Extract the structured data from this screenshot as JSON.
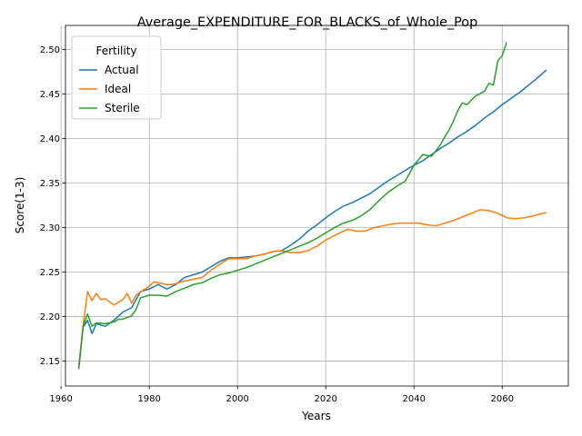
{
  "chart_data": {
    "type": "line",
    "title": "Average_EXPENDITURE_FOR_BLACKS_of_Whole_Pop",
    "xlabel": "Years",
    "ylabel": "Score(1-3)",
    "xlim": [
      1961,
      2075
    ],
    "ylim": [
      2.122,
      2.527
    ],
    "xticks": [
      1960,
      1980,
      2000,
      2020,
      2040,
      2060
    ],
    "yticks": [
      2.15,
      2.2,
      2.25,
      2.3,
      2.35,
      2.4,
      2.45,
      2.5
    ],
    "ytick_labels": [
      "2.15",
      "2.20",
      "2.25",
      "2.30",
      "2.35",
      "2.40",
      "2.45",
      "2.50"
    ],
    "grid": true,
    "legend": {
      "title": "Fertility",
      "placement": "upper-left"
    },
    "series": [
      {
        "name": "Actual",
        "color": "#1f77b4",
        "x": [
          1964,
          1965,
          1966,
          1967,
          1968,
          1970,
          1972,
          1974,
          1976,
          1978,
          1980,
          1982,
          1984,
          1986,
          1988,
          1990,
          1992,
          1994,
          1996,
          1998,
          2000,
          2002,
          2004,
          2006,
          2008,
          2010,
          2012,
          2014,
          2016,
          2018,
          2020,
          2022,
          2024,
          2026,
          2028,
          2030,
          2032,
          2034,
          2036,
          2038,
          2040,
          2042,
          2044,
          2046,
          2048,
          2050,
          2052,
          2054,
          2056,
          2058,
          2060,
          2062,
          2064,
          2066,
          2068,
          2070
        ],
        "values": [
          2.141,
          2.188,
          2.196,
          2.181,
          2.192,
          2.189,
          2.196,
          2.205,
          2.21,
          2.228,
          2.231,
          2.236,
          2.231,
          2.236,
          2.244,
          2.247,
          2.25,
          2.256,
          2.262,
          2.266,
          2.266,
          2.267,
          2.268,
          2.27,
          2.273,
          2.274,
          2.28,
          2.287,
          2.296,
          2.303,
          2.311,
          2.318,
          2.324,
          2.328,
          2.333,
          2.338,
          2.345,
          2.352,
          2.358,
          2.364,
          2.37,
          2.375,
          2.382,
          2.389,
          2.395,
          2.402,
          2.408,
          2.415,
          2.423,
          2.43,
          2.438,
          2.445,
          2.452,
          2.46,
          2.468,
          2.477
        ]
      },
      {
        "name": "Ideal",
        "color": "#ff7f0e",
        "x": [
          1964,
          1965,
          1966,
          1967,
          1968,
          1969,
          1970,
          1972,
          1974,
          1975,
          1976,
          1977,
          1978,
          1980,
          1981,
          1982,
          1984,
          1985,
          1986,
          1988,
          1990,
          1992,
          1994,
          1996,
          1998,
          2000,
          2002,
          2004,
          2006,
          2008,
          2010,
          2012,
          2014,
          2016,
          2018,
          2020,
          2022,
          2024,
          2025,
          2027,
          2029,
          2031,
          2033,
          2035,
          2037,
          2039,
          2041,
          2043,
          2045,
          2047,
          2049,
          2051,
          2053,
          2055,
          2057,
          2059,
          2061,
          2063,
          2065,
          2067,
          2070
        ],
        "values": [
          2.144,
          2.19,
          2.228,
          2.218,
          2.226,
          2.219,
          2.22,
          2.213,
          2.219,
          2.226,
          2.215,
          2.224,
          2.228,
          2.234,
          2.239,
          2.238,
          2.236,
          2.236,
          2.237,
          2.24,
          2.242,
          2.244,
          2.252,
          2.259,
          2.265,
          2.265,
          2.265,
          2.268,
          2.27,
          2.273,
          2.274,
          2.272,
          2.272,
          2.274,
          2.279,
          2.286,
          2.291,
          2.296,
          2.298,
          2.296,
          2.296,
          2.3,
          2.302,
          2.304,
          2.305,
          2.305,
          2.305,
          2.303,
          2.302,
          2.305,
          2.308,
          2.312,
          2.316,
          2.32,
          2.319,
          2.316,
          2.311,
          2.31,
          2.311,
          2.313,
          2.317
        ]
      },
      {
        "name": "Sterile",
        "color": "#2ca02c",
        "x": [
          1964,
          1965,
          1966,
          1967,
          1968,
          1970,
          1972,
          1973,
          1974,
          1976,
          1977,
          1978,
          1980,
          1982,
          1984,
          1986,
          1988,
          1990,
          1992,
          1994,
          1996,
          1998,
          2000,
          2002,
          2004,
          2006,
          2008,
          2010,
          2012,
          2014,
          2016,
          2018,
          2020,
          2022,
          2024,
          2026,
          2028,
          2030,
          2032,
          2034,
          2036,
          2038,
          2040,
          2042,
          2044,
          2046,
          2047,
          2048,
          2049,
          2050,
          2051,
          2052,
          2054,
          2056,
          2057,
          2058,
          2059,
          2060,
          2061
        ],
        "values": [
          2.142,
          2.189,
          2.203,
          2.189,
          2.193,
          2.192,
          2.194,
          2.197,
          2.197,
          2.201,
          2.208,
          2.221,
          2.224,
          2.224,
          2.223,
          2.228,
          2.232,
          2.236,
          2.238,
          2.243,
          2.247,
          2.249,
          2.252,
          2.255,
          2.259,
          2.263,
          2.267,
          2.271,
          2.275,
          2.279,
          2.283,
          2.288,
          2.294,
          2.3,
          2.305,
          2.308,
          2.313,
          2.32,
          2.33,
          2.339,
          2.346,
          2.352,
          2.37,
          2.382,
          2.38,
          2.393,
          2.402,
          2.41,
          2.42,
          2.432,
          2.44,
          2.438,
          2.448,
          2.453,
          2.462,
          2.46,
          2.487,
          2.493,
          2.508
        ]
      }
    ]
  }
}
